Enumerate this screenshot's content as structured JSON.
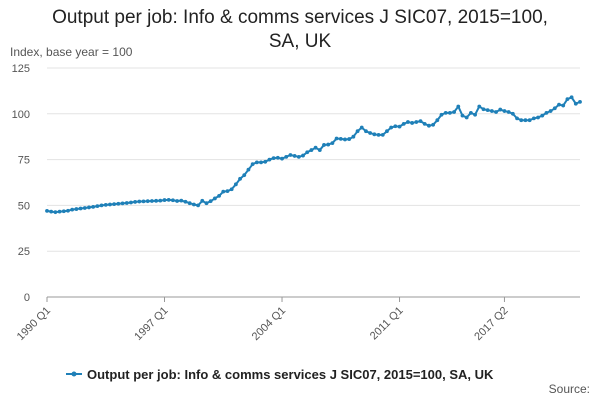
{
  "chart_data": {
    "type": "line",
    "title_line1": "Output per job: Info & comms services J SIC07, 2015=100,",
    "title_line2": "SA, UK",
    "ylabel": "Index, base year = 100",
    "source": "Source:",
    "ylim": [
      0,
      125
    ],
    "yticks": [
      0,
      25,
      50,
      75,
      100,
      125
    ],
    "xticks": [
      "1990 Q1",
      "1997 Q1",
      "2004 Q1",
      "2011 Q1",
      "2017 Q2"
    ],
    "grid": true,
    "legend_position": "bottom",
    "series": [
      {
        "name": "Output per job: Info & comms services J SIC07, 2015=100, SA, UK",
        "color": "#1f80b8",
        "start": "1990 Q1",
        "values": [
          47.0,
          46.6,
          46.3,
          46.6,
          46.8,
          47.1,
          47.7,
          48.0,
          48.3,
          48.6,
          48.9,
          49.2,
          49.6,
          50.0,
          50.3,
          50.5,
          50.7,
          50.9,
          51.1,
          51.3,
          51.6,
          51.9,
          52.1,
          52.2,
          52.3,
          52.4,
          52.5,
          52.6,
          52.9,
          53.0,
          52.8,
          52.4,
          52.6,
          52.0,
          51.2,
          50.5,
          50.0,
          52.5,
          51.2,
          52.3,
          53.8,
          55.2,
          57.5,
          57.8,
          58.8,
          61.5,
          64.5,
          66.5,
          69.5,
          72.5,
          73.5,
          73.5,
          73.8,
          75.0,
          75.8,
          76.0,
          75.5,
          76.5,
          77.5,
          77.0,
          76.5,
          77.2,
          79.0,
          80.2,
          81.5,
          80.2,
          83.0,
          83.2,
          84.0,
          86.5,
          86.3,
          86.0,
          86.2,
          87.5,
          90.5,
          92.5,
          90.5,
          89.5,
          88.8,
          88.5,
          88.5,
          90.5,
          92.5,
          93.2,
          93.0,
          94.5,
          95.5,
          95.0,
          95.5,
          96.0,
          94.5,
          93.5,
          94.0,
          96.5,
          99.5,
          100.5,
          100.5,
          101.0,
          104.0,
          99.0,
          98.0,
          100.5,
          99.5,
          104.0,
          102.5,
          102.0,
          101.5,
          101.0,
          102.3,
          101.5,
          101.0,
          100.0,
          97.5,
          96.5,
          96.5,
          96.5,
          97.5,
          98.0,
          99.0,
          100.5,
          101.5,
          103.0,
          105.0,
          104.5,
          108.0,
          109.0,
          105.5,
          106.5
        ]
      }
    ]
  }
}
